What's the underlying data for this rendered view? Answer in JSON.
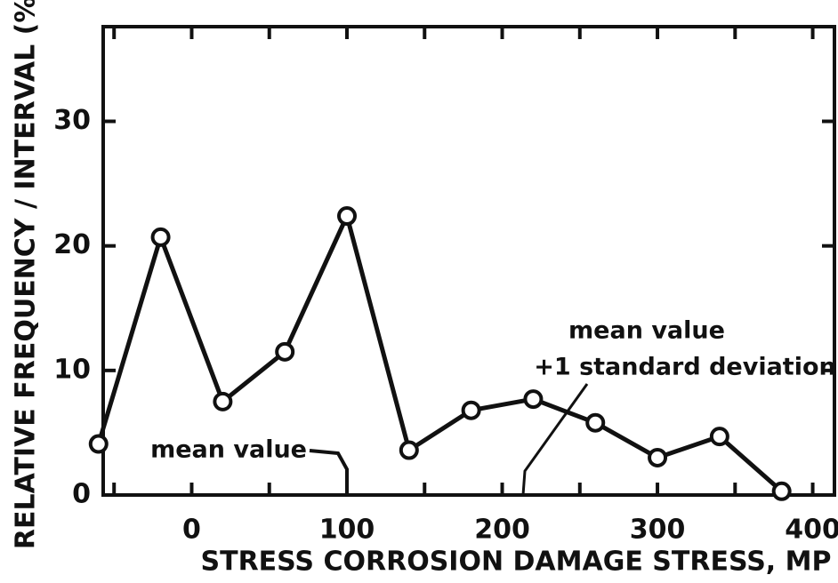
{
  "chart_data": {
    "type": "line",
    "x_label": "STRESS CORROSION DAMAGE STRESS, MP",
    "y_label": "RELATIVE FREQUENCY / INTERVAL (%)",
    "x": [
      -60,
      -20,
      20,
      60,
      100,
      140,
      180,
      220,
      260,
      300,
      340,
      380
    ],
    "values": [
      4.1,
      20.7,
      7.5,
      11.5,
      22.4,
      3.6,
      6.8,
      7.7,
      5.8,
      3.0,
      4.7,
      0.3
    ],
    "color": "#111111",
    "xlim": [
      -57,
      414
    ],
    "xticks": [
      0,
      100,
      200,
      300,
      400
    ],
    "xminor": [
      -50,
      50,
      150,
      250,
      350
    ],
    "ylim": [
      0,
      37.6
    ],
    "yticks": [
      0,
      10,
      20,
      30
    ],
    "annotations": [
      "mean value",
      "mean value",
      "+1 standard deviation"
    ]
  }
}
